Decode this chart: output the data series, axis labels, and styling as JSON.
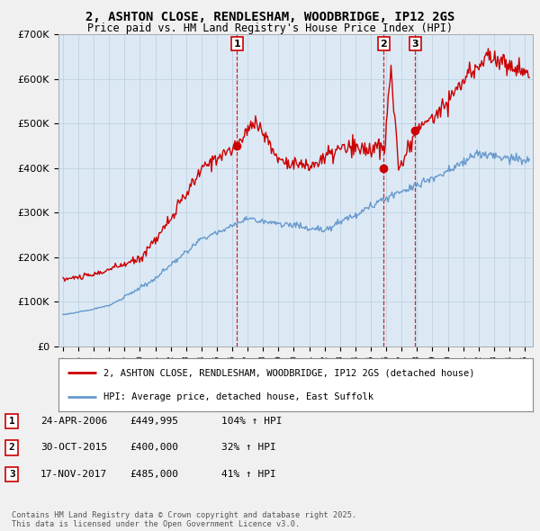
{
  "title_line1": "2, ASHTON CLOSE, RENDLESHAM, WOODBRIDGE, IP12 2GS",
  "title_line2": "Price paid vs. HM Land Registry's House Price Index (HPI)",
  "background_color": "#f0f0f0",
  "plot_bg_color": "#dce9f5",
  "red_line_color": "#cc0000",
  "blue_line_color": "#6699cc",
  "ylim": [
    0,
    700000
  ],
  "yticks": [
    0,
    100000,
    200000,
    300000,
    400000,
    500000,
    600000,
    700000
  ],
  "ytick_labels": [
    "£0",
    "£100K",
    "£200K",
    "£300K",
    "£400K",
    "£500K",
    "£600K",
    "£700K"
  ],
  "sale_points": [
    {
      "date_num": 2006.31,
      "price": 449995,
      "label": "1"
    },
    {
      "date_num": 2015.83,
      "price": 400000,
      "label": "2"
    },
    {
      "date_num": 2017.88,
      "price": 485000,
      "label": "3"
    }
  ],
  "vline_dates": [
    2006.31,
    2015.83,
    2017.88
  ],
  "legend_line1": "2, ASHTON CLOSE, RENDLESHAM, WOODBRIDGE, IP12 2GS (detached house)",
  "legend_line2": "HPI: Average price, detached house, East Suffolk",
  "table_data": [
    {
      "num": "1",
      "date": "24-APR-2006",
      "price": "£449,995",
      "hpi": "104% ↑ HPI"
    },
    {
      "num": "2",
      "date": "30-OCT-2015",
      "price": "£400,000",
      "hpi": "32% ↑ HPI"
    },
    {
      "num": "3",
      "date": "17-NOV-2017",
      "price": "£485,000",
      "hpi": "41% ↑ HPI"
    }
  ],
  "footer": "Contains HM Land Registry data © Crown copyright and database right 2025.\nThis data is licensed under the Open Government Licence v3.0."
}
